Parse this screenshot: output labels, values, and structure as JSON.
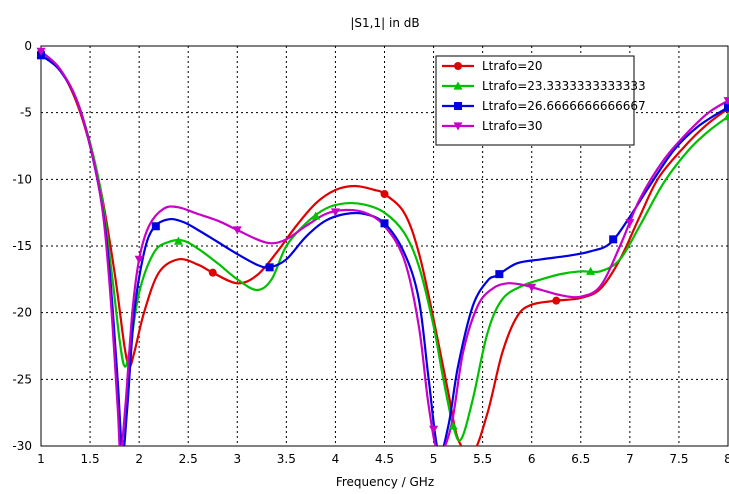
{
  "chart_data": {
    "type": "line",
    "title": "|S1,1| in dB",
    "xlabel": "Frequency / GHz",
    "ylabel": "",
    "xlim": [
      1,
      8
    ],
    "ylim": [
      -30,
      0
    ],
    "grid": true,
    "legend_position": "top-right",
    "x_ticks": [
      1,
      1.5,
      2,
      2.5,
      3,
      3.5,
      4,
      4.5,
      5,
      5.5,
      6,
      6.5,
      7,
      7.5,
      8
    ],
    "x_tick_labels": [
      "1",
      "1.5",
      "2",
      "2.5",
      "3",
      "3.5",
      "4",
      "4.5",
      "5",
      "5.5",
      "6",
      "6.5",
      "7",
      "7.5",
      "8"
    ],
    "y_ticks": [
      0,
      -5,
      -10,
      -15,
      -20,
      -25,
      -30
    ],
    "y_tick_labels": [
      "0",
      "-5",
      "-10",
      "-15",
      "-20",
      "-25",
      "-30"
    ],
    "series": [
      {
        "name": "Ltrafo=20",
        "color": "#e00000",
        "marker": "circle",
        "points": [
          [
            1,
            -0.5
          ],
          [
            1.2,
            -1.8
          ],
          [
            1.4,
            -5
          ],
          [
            1.6,
            -10.5
          ],
          [
            1.75,
            -17
          ],
          [
            1.85,
            -22.5
          ],
          [
            1.9,
            -24
          ],
          [
            1.95,
            -23
          ],
          [
            2.05,
            -20
          ],
          [
            2.2,
            -17
          ],
          [
            2.4,
            -16
          ],
          [
            2.6,
            -16.4
          ],
          [
            2.75,
            -17
          ],
          [
            3.0,
            -17.8
          ],
          [
            3.2,
            -17.2
          ],
          [
            3.4,
            -15.5
          ],
          [
            3.6,
            -13.5
          ],
          [
            3.8,
            -11.8
          ],
          [
            4.0,
            -10.8
          ],
          [
            4.2,
            -10.5
          ],
          [
            4.4,
            -10.8
          ],
          [
            4.5,
            -11.1
          ],
          [
            4.7,
            -12.5
          ],
          [
            4.85,
            -15.5
          ],
          [
            5.0,
            -20.5
          ],
          [
            5.15,
            -26
          ],
          [
            5.25,
            -29.5
          ],
          [
            5.4,
            -30.5
          ],
          [
            5.55,
            -27.5
          ],
          [
            5.7,
            -23
          ],
          [
            5.85,
            -20.3
          ],
          [
            6.0,
            -19.4
          ],
          [
            6.25,
            -19.1
          ],
          [
            6.5,
            -18.9
          ],
          [
            6.7,
            -18.2
          ],
          [
            6.9,
            -16
          ],
          [
            7.1,
            -12.8
          ],
          [
            7.3,
            -9.8
          ],
          [
            7.6,
            -7.2
          ],
          [
            7.8,
            -5.8
          ],
          [
            8.0,
            -4.7
          ]
        ],
        "marker_x": [
          1,
          2.75,
          4.5,
          6.25,
          8
        ]
      },
      {
        "name": "Ltrafo=23.3333333333333",
        "color": "#00c000",
        "marker": "triangle-up",
        "points": [
          [
            1,
            -0.6
          ],
          [
            1.2,
            -1.8
          ],
          [
            1.4,
            -4.8
          ],
          [
            1.6,
            -10.5
          ],
          [
            1.72,
            -17
          ],
          [
            1.8,
            -22
          ],
          [
            1.85,
            -24
          ],
          [
            1.9,
            -23
          ],
          [
            2.0,
            -18.5
          ],
          [
            2.15,
            -15.5
          ],
          [
            2.3,
            -14.7
          ],
          [
            2.45,
            -14.6
          ],
          [
            2.6,
            -15.2
          ],
          [
            2.8,
            -16.3
          ],
          [
            3.0,
            -17.5
          ],
          [
            3.2,
            -18.3
          ],
          [
            3.35,
            -17.5
          ],
          [
            3.5,
            -15
          ],
          [
            3.7,
            -13.3
          ],
          [
            3.9,
            -12.2
          ],
          [
            4.1,
            -11.8
          ],
          [
            4.3,
            -11.9
          ],
          [
            4.5,
            -12.5
          ],
          [
            4.7,
            -14
          ],
          [
            4.85,
            -16.5
          ],
          [
            5.0,
            -21
          ],
          [
            5.1,
            -25
          ],
          [
            5.2,
            -28.5
          ],
          [
            5.28,
            -29.5
          ],
          [
            5.4,
            -26.5
          ],
          [
            5.55,
            -21.5
          ],
          [
            5.7,
            -19
          ],
          [
            5.9,
            -18
          ],
          [
            6.1,
            -17.5
          ],
          [
            6.3,
            -17.1
          ],
          [
            6.5,
            -16.9
          ],
          [
            6.7,
            -16.9
          ],
          [
            6.9,
            -16
          ],
          [
            7.1,
            -13.5
          ],
          [
            7.35,
            -10.2
          ],
          [
            7.6,
            -7.8
          ],
          [
            7.8,
            -6.4
          ],
          [
            8.0,
            -5.3
          ]
        ],
        "marker_x": [
          1,
          2.4,
          3.8,
          5.2,
          6.6,
          8
        ]
      },
      {
        "name": "Ltrafo=26.6666666666667",
        "color": "#0000e0",
        "marker": "square",
        "points": [
          [
            1,
            -0.7
          ],
          [
            1.2,
            -1.9
          ],
          [
            1.4,
            -4.8
          ],
          [
            1.6,
            -11
          ],
          [
            1.7,
            -17
          ],
          [
            1.78,
            -25
          ],
          [
            1.83,
            -30.5
          ],
          [
            1.88,
            -27
          ],
          [
            1.95,
            -20
          ],
          [
            2.05,
            -15.5
          ],
          [
            2.15,
            -13.6
          ],
          [
            2.3,
            -13
          ],
          [
            2.45,
            -13.2
          ],
          [
            2.6,
            -13.8
          ],
          [
            2.8,
            -14.7
          ],
          [
            3.0,
            -15.6
          ],
          [
            3.2,
            -16.4
          ],
          [
            3.33,
            -16.6
          ],
          [
            3.5,
            -16
          ],
          [
            3.7,
            -14.3
          ],
          [
            3.9,
            -13.1
          ],
          [
            4.1,
            -12.6
          ],
          [
            4.3,
            -12.6
          ],
          [
            4.5,
            -13.3
          ],
          [
            4.7,
            -15.5
          ],
          [
            4.85,
            -19
          ],
          [
            4.95,
            -25
          ],
          [
            5.05,
            -30.5
          ],
          [
            5.15,
            -28.5
          ],
          [
            5.25,
            -24
          ],
          [
            5.4,
            -19.5
          ],
          [
            5.55,
            -17.6
          ],
          [
            5.65,
            -17.2
          ],
          [
            5.85,
            -16.3
          ],
          [
            6.1,
            -16
          ],
          [
            6.4,
            -15.7
          ],
          [
            6.6,
            -15.4
          ],
          [
            6.8,
            -14.8
          ],
          [
            7.0,
            -12.8
          ],
          [
            7.2,
            -10.5
          ],
          [
            7.45,
            -7.8
          ],
          [
            7.7,
            -6
          ],
          [
            8.0,
            -4.6
          ]
        ],
        "marker_x": [
          1,
          2.17,
          3.33,
          4.5,
          5.67,
          6.83,
          8
        ]
      },
      {
        "name": "Ltrafo=30",
        "color": "#c800c8",
        "marker": "triangle-down",
        "points": [
          [
            1,
            -0.4
          ],
          [
            1.2,
            -1.8
          ],
          [
            1.4,
            -4.8
          ],
          [
            1.6,
            -11
          ],
          [
            1.7,
            -18
          ],
          [
            1.78,
            -27
          ],
          [
            1.81,
            -30.5
          ],
          [
            1.86,
            -27
          ],
          [
            1.93,
            -20
          ],
          [
            2.0,
            -16
          ],
          [
            2.1,
            -13.5
          ],
          [
            2.25,
            -12.2
          ],
          [
            2.4,
            -12.1
          ],
          [
            2.6,
            -12.6
          ],
          [
            2.8,
            -13.1
          ],
          [
            3.0,
            -13.8
          ],
          [
            3.2,
            -14.5
          ],
          [
            3.35,
            -14.8
          ],
          [
            3.5,
            -14.5
          ],
          [
            3.7,
            -13.5
          ],
          [
            3.9,
            -12.6
          ],
          [
            4.1,
            -12.3
          ],
          [
            4.3,
            -12.5
          ],
          [
            4.5,
            -13.5
          ],
          [
            4.7,
            -16
          ],
          [
            4.85,
            -21
          ],
          [
            4.95,
            -27
          ],
          [
            5.05,
            -30.5
          ],
          [
            5.18,
            -28.5
          ],
          [
            5.3,
            -23
          ],
          [
            5.45,
            -19.5
          ],
          [
            5.6,
            -18.2
          ],
          [
            5.75,
            -17.8
          ],
          [
            5.9,
            -17.9
          ],
          [
            6.1,
            -18.3
          ],
          [
            6.3,
            -18.7
          ],
          [
            6.5,
            -18.8
          ],
          [
            6.7,
            -18
          ],
          [
            6.9,
            -15
          ],
          [
            7.1,
            -11.5
          ],
          [
            7.35,
            -8.5
          ],
          [
            7.6,
            -6.4
          ],
          [
            7.8,
            -5
          ],
          [
            8.0,
            -4.1
          ]
        ],
        "marker_x": [
          1,
          2,
          3,
          4,
          5,
          6,
          7,
          8
        ]
      }
    ]
  }
}
